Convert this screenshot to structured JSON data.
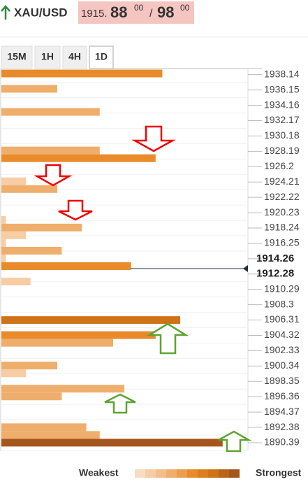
{
  "header": {
    "symbol": "XAU/USD",
    "bid_prefix": "1915.",
    "bid": "88",
    "bid_sup": "00",
    "separator": "/",
    "ask": "98",
    "ask_sup": "00"
  },
  "tabs": [
    "15M",
    "1H",
    "4H",
    "1D"
  ],
  "active_tab": "1D",
  "chart_data": {
    "type": "bar",
    "orientation": "horizontal",
    "y": [
      1938.29,
      1936.3,
      1933.3,
      1928.3,
      1927.3,
      1924.3,
      1923.3,
      1919.3,
      1918.3,
      1917.3,
      1916.3,
      1915.3,
      1914.3,
      1913.3,
      1911.3,
      1906.3,
      1904.35,
      1903.35,
      1900.4,
      1899.4,
      1897.4,
      1896.4,
      1892.4,
      1891.4,
      1890.4
    ],
    "values": [
      72,
      25,
      44,
      44,
      69,
      11,
      25,
      2,
      36,
      11,
      2,
      27,
      2,
      58,
      13,
      80,
      69,
      50,
      25,
      11,
      55,
      27,
      38,
      44,
      99
    ],
    "xlim": [
      0,
      100
    ],
    "ylim": [
      1889.3,
      1939.2
    ],
    "yticks": [
      1938.14,
      1936.15,
      1934.16,
      1932.17,
      1930.18,
      1928.19,
      1926.2,
      1924.21,
      1922.22,
      1920.23,
      1918.24,
      1916.25,
      1914.26,
      1912.28,
      1910.29,
      1908.3,
      1906.31,
      1904.32,
      1902.33,
      1900.34,
      1898.35,
      1896.36,
      1894.37,
      1892.38,
      1890.39
    ],
    "legend": {
      "weakest": "Weakest",
      "strongest": "Strongest"
    }
  }
}
